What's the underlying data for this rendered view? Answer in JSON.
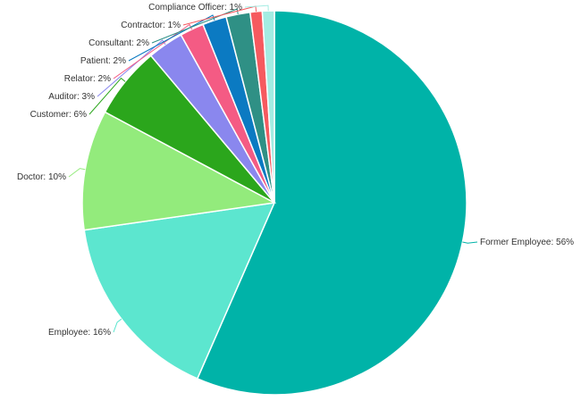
{
  "chart_data": {
    "type": "pie",
    "title": "",
    "legend": "none",
    "start_angle_deg": 0,
    "direction": "clockwise",
    "slices": [
      {
        "label": "Former Employee: 56%",
        "category": "Former Employee",
        "value": 56,
        "color": "#00b3a8"
      },
      {
        "label": "Employee: 16%",
        "category": "Employee",
        "value": 16,
        "color": "#5ce6cf"
      },
      {
        "label": "Doctor: 10%",
        "category": "Doctor",
        "value": 10,
        "color": "#93eb7c"
      },
      {
        "label": "Customer: 6%",
        "category": "Customer",
        "value": 6,
        "color": "#2ba61c"
      },
      {
        "label": "Auditor: 3%",
        "category": "Auditor",
        "value": 3,
        "color": "#8a87ee"
      },
      {
        "label": "Relator: 2%",
        "category": "Relator",
        "value": 2,
        "color": "#f45b84"
      },
      {
        "label": "Patient: 2%",
        "category": "Patient",
        "value": 2,
        "color": "#0b7ac2"
      },
      {
        "label": "Consultant: 2%",
        "category": "Consultant",
        "value": 2,
        "color": "#2f9085"
      },
      {
        "label": "Contractor: 1%",
        "category": "Contractor",
        "value": 1,
        "color": "#f65a5f"
      },
      {
        "label": "Compliance Officer: 1%",
        "category": "Compliance Officer",
        "value": 1,
        "color": "#a3ece2"
      }
    ]
  }
}
